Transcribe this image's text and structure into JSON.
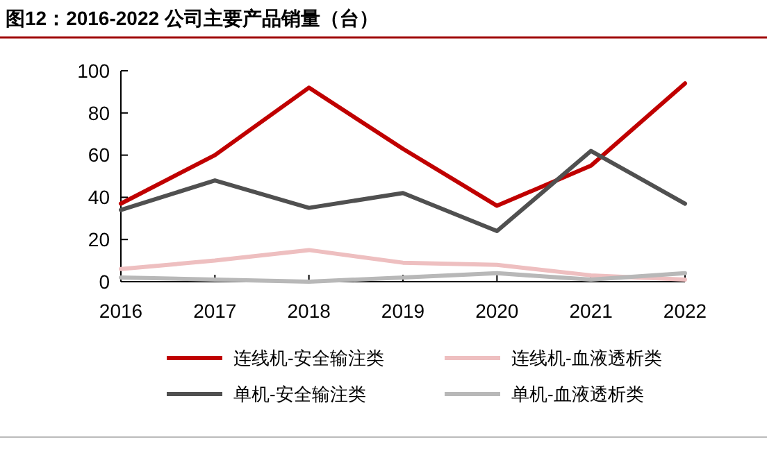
{
  "chart_data": {
    "type": "line",
    "title": "图12：2016-2022 公司主要产品销量（台）",
    "categories": [
      "2016",
      "2017",
      "2018",
      "2019",
      "2020",
      "2021",
      "2022"
    ],
    "series": [
      {
        "name": "连线机-安全输注类",
        "color": "#c00000",
        "values": [
          37,
          60,
          92,
          63,
          36,
          55,
          94
        ]
      },
      {
        "name": "连线机-血液透析类",
        "color": "#eebfc0",
        "values": [
          6,
          10,
          15,
          9,
          8,
          3,
          1
        ]
      },
      {
        "name": "单机-安全输注类",
        "color": "#505050",
        "values": [
          34,
          48,
          35,
          42,
          24,
          62,
          37
        ]
      },
      {
        "name": "单机-血液透析类",
        "color": "#b8b8b8",
        "values": [
          2,
          1,
          0,
          2,
          4,
          1,
          4
        ]
      }
    ],
    "ylim": [
      0,
      100
    ],
    "yticks": [
      0,
      20,
      40,
      60,
      80,
      100
    ],
    "grid": false,
    "legend": "bottom",
    "marker": "none",
    "line_style": "solid"
  }
}
